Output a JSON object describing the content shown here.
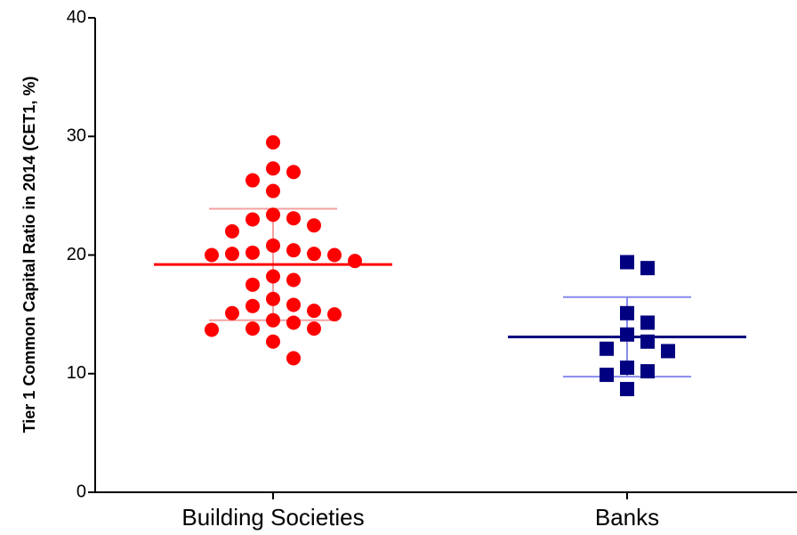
{
  "chart_data": {
    "type": "strip",
    "ylabel": "Tier 1 Common Capital Ratio in 2014 (CET1, %)",
    "categories": [
      "Building Societies",
      "Banks"
    ],
    "ylim": [
      0,
      40
    ],
    "yticks": [
      0,
      10,
      20,
      30,
      40
    ],
    "series": [
      {
        "color": "#ff0000",
        "marker": "circle",
        "error_color": "#f4a0a0",
        "mean": 19.2,
        "sd": 4.7,
        "values": [
          29.5,
          27.3,
          27.0,
          26.3,
          25.4,
          23.4,
          23.1,
          23.0,
          22.5,
          22.0,
          20.8,
          20.4,
          20.2,
          20.1,
          20.1,
          20.0,
          20.0,
          19.5,
          18.2,
          17.9,
          17.5,
          16.3,
          15.8,
          15.7,
          15.3,
          15.1,
          15.0,
          14.5,
          14.3,
          13.8,
          13.8,
          13.7,
          12.7,
          11.3
        ]
      },
      {
        "color": "#000080",
        "marker": "square",
        "error_color": "#8888ee",
        "mean": 13.1,
        "sd": 3.35,
        "values": [
          19.4,
          18.9,
          15.1,
          14.3,
          13.3,
          12.7,
          12.1,
          11.9,
          10.5,
          10.2,
          9.9,
          8.7
        ]
      }
    ]
  }
}
